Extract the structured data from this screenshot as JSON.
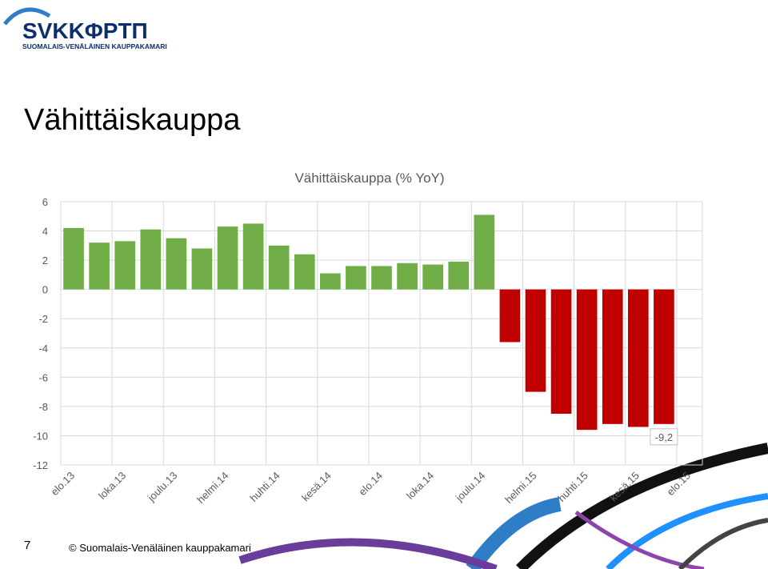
{
  "header": {
    "logo": "SVKKΦPTΠ",
    "org": "SUOMALAIS-VENÄLÄINEN KAUPPAKAMARI"
  },
  "slide_title": "Vähittäiskauppa",
  "chart_data": {
    "type": "bar",
    "title": "Vähittäiskauppa (% YoY)",
    "categories": [
      "elo.13",
      null,
      "loka.13",
      null,
      "joulu.13",
      null,
      "helmi.14",
      null,
      "huhti.14",
      null,
      "kesä.14",
      null,
      "elo.14",
      null,
      "loka.14",
      null,
      "joulu.14",
      null,
      "helmi.15",
      null,
      "huhti.15",
      null,
      "kesä.15",
      null,
      "elo.15"
    ],
    "values": [
      4.2,
      3.2,
      3.3,
      4.1,
      3.5,
      2.8,
      4.3,
      4.5,
      3.0,
      2.4,
      1.1,
      1.6,
      1.6,
      1.8,
      1.7,
      1.9,
      5.1,
      -3.6,
      -7.0,
      -8.5,
      -9.6,
      -9.2,
      -9.4,
      -9.2,
      null
    ],
    "value_labels": [
      null,
      null,
      null,
      null,
      null,
      null,
      null,
      null,
      null,
      null,
      null,
      null,
      null,
      null,
      null,
      null,
      null,
      null,
      null,
      null,
      null,
      null,
      null,
      "-9,2",
      null
    ],
    "color": "#70ad47",
    "negative_color": "#c00000",
    "ylim": [
      -12,
      6
    ],
    "yticks": [
      -12,
      -10,
      -8,
      -6,
      -4,
      -2,
      0,
      2,
      4,
      6
    ],
    "grid": true
  },
  "footer": {
    "page": "7",
    "copyright": "© Suomalais-Venäläinen kauppakamari"
  }
}
